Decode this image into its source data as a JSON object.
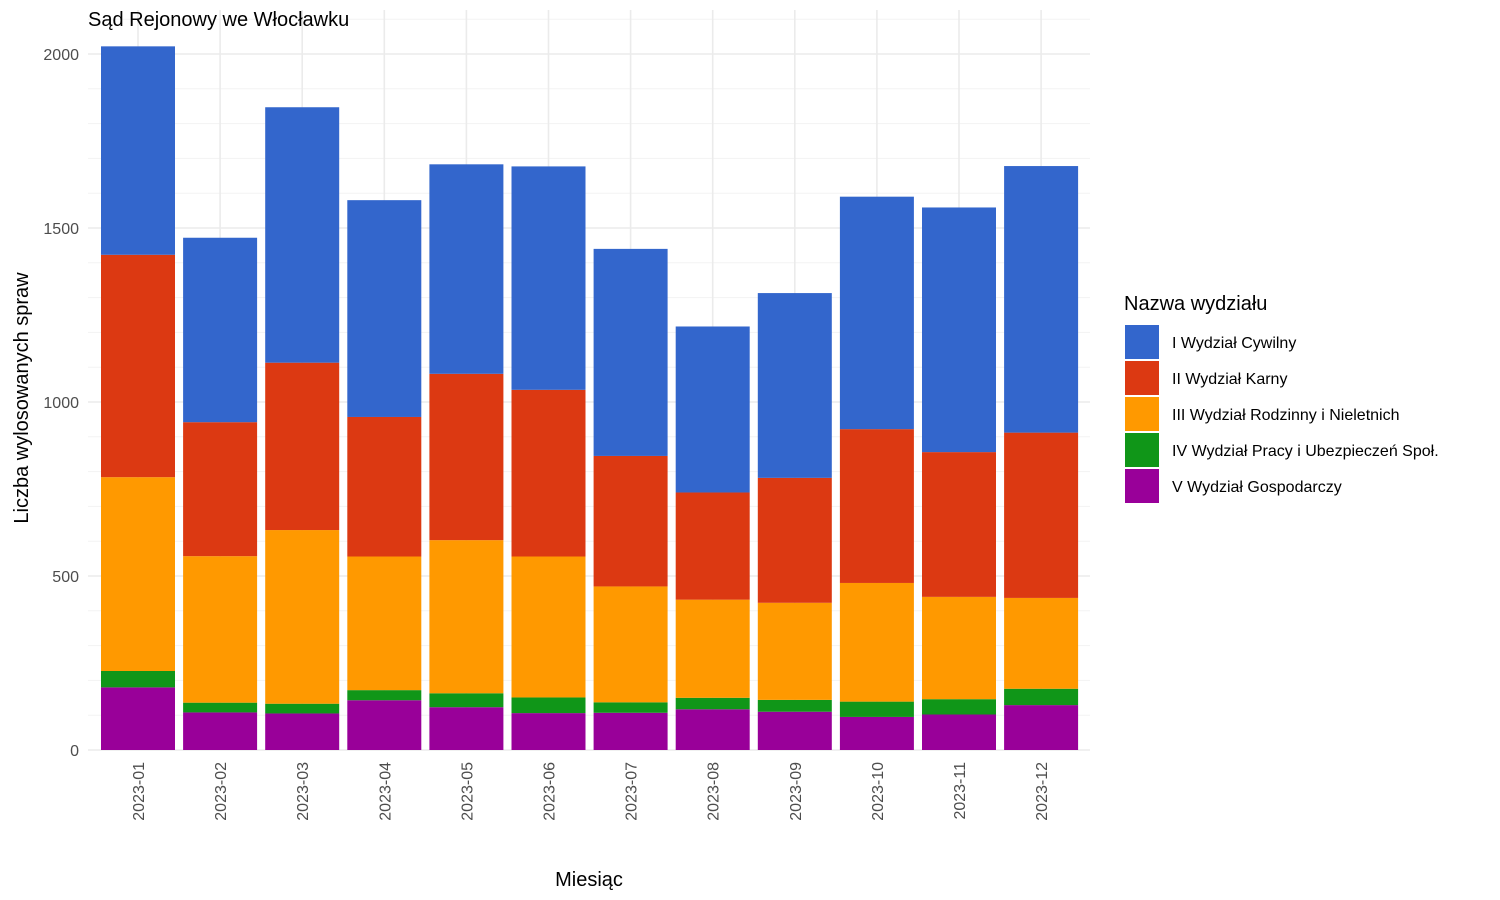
{
  "chart_data": {
    "type": "bar",
    "stacked": true,
    "title": "Sąd Rejonowy we Włocławku",
    "xlabel": "Miesiąc",
    "ylabel": "Liczba wylosowanych spraw",
    "ylim": [
      0,
      2100
    ],
    "yticks": [
      0,
      500,
      1000,
      1500,
      2000
    ],
    "grid": true,
    "legend_position": "right",
    "legend_title": "Nazwa wydziału",
    "categories": [
      "2023-01",
      "2023-02",
      "2023-03",
      "2023-04",
      "2023-05",
      "2023-06",
      "2023-07",
      "2023-08",
      "2023-09",
      "2023-10",
      "2023-11",
      "2023-12"
    ],
    "series": [
      {
        "name": "V Wydział Gospodarczy",
        "color": "#990099",
        "values": [
          180,
          108,
          105,
          143,
          123,
          106,
          107,
          117,
          110,
          95,
          102,
          129
        ]
      },
      {
        "name": "IV Wydział Pracy i Ubezpieczeń Społ.",
        "color": "#109618",
        "values": [
          47,
          28,
          28,
          29,
          40,
          45,
          30,
          33,
          34,
          44,
          44,
          47
        ]
      },
      {
        "name": "III Wydział Rodzinny i Nieletnich",
        "color": "#FF9900",
        "values": [
          557,
          421,
          499,
          384,
          440,
          405,
          333,
          282,
          279,
          341,
          294,
          261
        ]
      },
      {
        "name": "II Wydział Karny",
        "color": "#DC3912",
        "values": [
          639,
          385,
          481,
          401,
          478,
          479,
          375,
          308,
          359,
          442,
          416,
          475
        ]
      },
      {
        "name": "I Wydział Cywilny",
        "color": "#3366CC",
        "values": [
          599,
          530,
          734,
          623,
          602,
          642,
          595,
          477,
          531,
          668,
          703,
          766
        ]
      }
    ],
    "legend_order": [
      "I Wydział Cywilny",
      "II Wydział Karny",
      "III Wydział Rodzinny i Nieletnich",
      "IV Wydział Pracy i Ubezpieczeń Społ.",
      "V Wydział Gospodarczy"
    ]
  }
}
